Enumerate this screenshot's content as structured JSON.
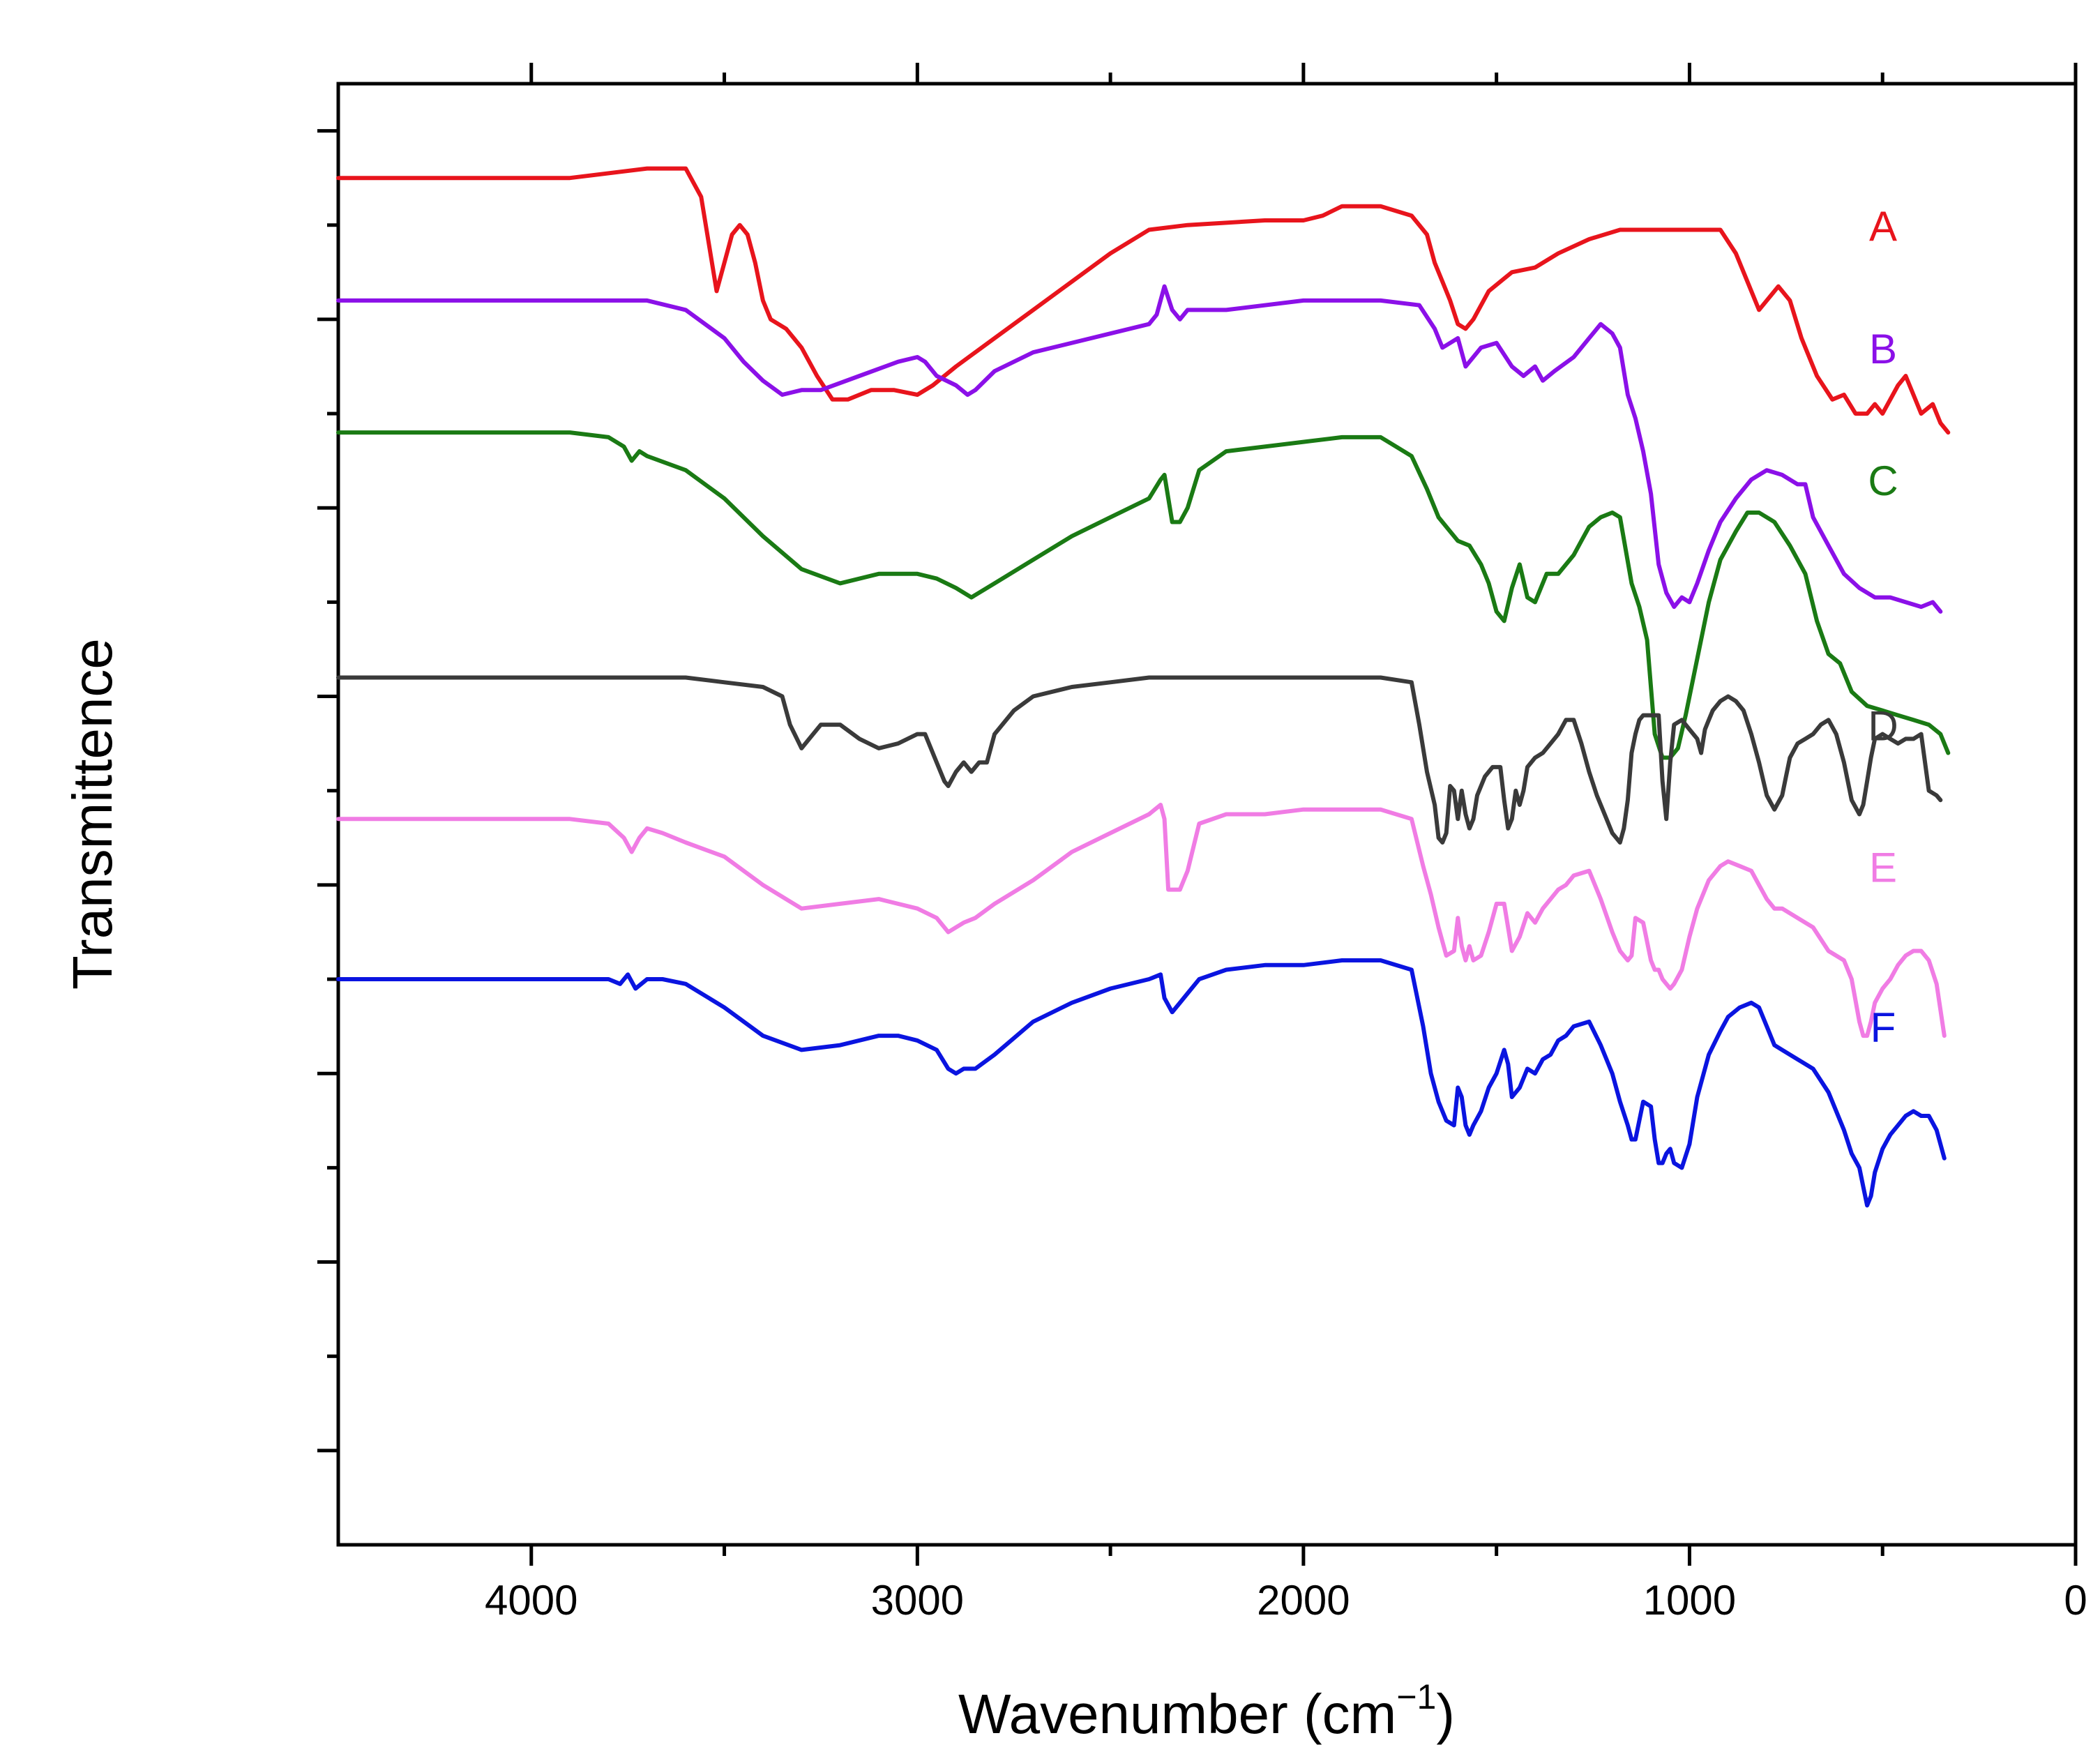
{
  "chart_data": {
    "type": "line",
    "title": "",
    "xlabel": "Wavenumber (cm",
    "xlabel_sup": "−1",
    "xlabel_close": ")",
    "ylabel": "Transmittence",
    "xlim": [
      4500,
      0
    ],
    "x_ticks": [
      4000,
      3000,
      2000,
      1000,
      0
    ],
    "x_tick_labels": [
      "4000",
      "3000",
      "2000",
      "1000",
      "0"
    ],
    "x_minor_ticks": [
      3500,
      2500,
      1500,
      500
    ],
    "ylim": [
      0,
      15.5
    ],
    "y_ticks": [
      1,
      3,
      5,
      7,
      9,
      11,
      13,
      15
    ],
    "y_tick_labels": [],
    "grid": false,
    "series": [
      {
        "name": "A",
        "color": "#e8141c",
        "x": [
          4500,
          3900,
          3700,
          3600,
          3560,
          3540,
          3520,
          3500,
          3480,
          3460,
          3440,
          3420,
          3400,
          3380,
          3340,
          3300,
          3260,
          3220,
          3180,
          3120,
          3060,
          3000,
          2960,
          2900,
          2800,
          2700,
          2600,
          2500,
          2400,
          2300,
          2100,
          2000,
          1950,
          1900,
          1800,
          1720,
          1680,
          1660,
          1640,
          1620,
          1600,
          1580,
          1560,
          1520,
          1460,
          1400,
          1340,
          1260,
          1180,
          1100,
          1000,
          920,
          880,
          850,
          820,
          800,
          770,
          740,
          710,
          670,
          630,
          600,
          570,
          540,
          520,
          500,
          480,
          460,
          440,
          420,
          400,
          370,
          350,
          330
        ],
        "y": [
          14.5,
          14.5,
          14.6,
          14.6,
          14.3,
          13.8,
          13.3,
          13.6,
          13.9,
          14.0,
          13.9,
          13.6,
          13.2,
          13.0,
          12.9,
          12.7,
          12.4,
          12.15,
          12.15,
          12.25,
          12.25,
          12.2,
          12.3,
          12.5,
          12.8,
          13.1,
          13.4,
          13.7,
          13.95,
          14.0,
          14.05,
          14.05,
          14.1,
          14.2,
          14.2,
          14.1,
          13.9,
          13.6,
          13.4,
          13.2,
          12.95,
          12.9,
          13.0,
          13.3,
          13.5,
          13.55,
          13.7,
          13.85,
          13.95,
          13.95,
          13.95,
          13.95,
          13.7,
          13.4,
          13.1,
          13.2,
          13.35,
          13.2,
          12.8,
          12.4,
          12.15,
          12.2,
          12.0,
          12.0,
          12.1,
          12.0,
          12.15,
          12.3,
          12.4,
          12.2,
          12.0,
          12.1,
          11.9,
          11.8
        ]
      },
      {
        "name": "B",
        "color": "#8b10e8",
        "x": [
          4500,
          3900,
          3700,
          3600,
          3500,
          3450,
          3400,
          3350,
          3300,
          3250,
          3150,
          3050,
          3000,
          2980,
          2950,
          2900,
          2870,
          2850,
          2800,
          2750,
          2700,
          2500,
          2400,
          2380,
          2360,
          2340,
          2320,
          2300,
          2200,
          2000,
          1900,
          1800,
          1700,
          1660,
          1640,
          1600,
          1580,
          1540,
          1500,
          1460,
          1430,
          1400,
          1380,
          1350,
          1300,
          1260,
          1230,
          1200,
          1180,
          1160,
          1140,
          1120,
          1100,
          1080,
          1060,
          1040,
          1020,
          1000,
          980,
          950,
          920,
          880,
          840,
          800,
          760,
          720,
          700,
          680,
          640,
          600,
          560,
          520,
          480,
          440,
          400,
          370,
          350
        ],
        "y": [
          13.2,
          13.2,
          13.2,
          13.1,
          12.8,
          12.55,
          12.35,
          12.2,
          12.25,
          12.25,
          12.4,
          12.55,
          12.6,
          12.55,
          12.4,
          12.3,
          12.2,
          12.25,
          12.45,
          12.55,
          12.65,
          12.85,
          12.95,
          13.05,
          13.35,
          13.1,
          13.0,
          13.1,
          13.1,
          13.2,
          13.2,
          13.2,
          13.15,
          12.9,
          12.7,
          12.8,
          12.5,
          12.7,
          12.75,
          12.5,
          12.4,
          12.5,
          12.35,
          12.45,
          12.6,
          12.8,
          12.95,
          12.85,
          12.7,
          12.2,
          11.95,
          11.6,
          11.15,
          10.4,
          10.1,
          9.95,
          10.05,
          10.0,
          10.2,
          10.55,
          10.85,
          11.1,
          11.3,
          11.4,
          11.35,
          11.25,
          11.25,
          10.9,
          10.6,
          10.3,
          10.15,
          10.05,
          10.05,
          10.0,
          9.95,
          10.0,
          9.9
        ]
      },
      {
        "name": "C",
        "color": "#1a7a14",
        "x": [
          4500,
          3900,
          3800,
          3760,
          3740,
          3720,
          3700,
          3600,
          3500,
          3400,
          3300,
          3200,
          3100,
          3000,
          2950,
          2900,
          2860,
          2800,
          2700,
          2600,
          2500,
          2400,
          2370,
          2360,
          2340,
          2320,
          2300,
          2270,
          2200,
          2100,
          2000,
          1900,
          1800,
          1720,
          1680,
          1650,
          1620,
          1600,
          1570,
          1540,
          1520,
          1500,
          1480,
          1460,
          1440,
          1420,
          1400,
          1370,
          1340,
          1300,
          1280,
          1260,
          1230,
          1200,
          1180,
          1150,
          1130,
          1110,
          1090,
          1070,
          1050,
          1030,
          1010,
          980,
          950,
          920,
          880,
          850,
          820,
          780,
          740,
          700,
          670,
          640,
          610,
          580,
          540,
          500,
          460,
          420,
          380,
          350,
          330
        ],
        "y": [
          11.8,
          11.8,
          11.75,
          11.65,
          11.5,
          11.6,
          11.55,
          11.4,
          11.1,
          10.7,
          10.35,
          10.2,
          10.3,
          10.3,
          10.25,
          10.15,
          10.05,
          10.2,
          10.45,
          10.7,
          10.9,
          11.1,
          11.3,
          11.35,
          10.85,
          10.85,
          11.0,
          11.4,
          11.6,
          11.65,
          11.7,
          11.75,
          11.75,
          11.55,
          11.2,
          10.9,
          10.75,
          10.65,
          10.6,
          10.4,
          10.2,
          9.9,
          9.8,
          10.15,
          10.4,
          10.05,
          10.0,
          10.3,
          10.3,
          10.5,
          10.65,
          10.8,
          10.9,
          10.95,
          10.9,
          10.2,
          9.95,
          9.6,
          8.6,
          8.35,
          8.35,
          8.45,
          8.8,
          9.4,
          10.0,
          10.45,
          10.75,
          10.95,
          10.95,
          10.85,
          10.6,
          10.3,
          9.8,
          9.45,
          9.35,
          9.05,
          8.9,
          8.85,
          8.8,
          8.75,
          8.7,
          8.6,
          8.4
        ]
      },
      {
        "name": "D",
        "color": "#3a3a3a",
        "x": [
          4500,
          3900,
          3700,
          3600,
          3500,
          3400,
          3350,
          3330,
          3300,
          3280,
          3250,
          3200,
          3150,
          3100,
          3050,
          3000,
          2980,
          2950,
          2930,
          2920,
          2900,
          2880,
          2860,
          2840,
          2820,
          2800,
          2750,
          2700,
          2600,
          2500,
          2400,
          2300,
          2200,
          2100,
          2000,
          1900,
          1800,
          1720,
          1700,
          1680,
          1660,
          1650,
          1640,
          1630,
          1620,
          1610,
          1600,
          1590,
          1580,
          1570,
          1560,
          1550,
          1530,
          1510,
          1490,
          1480,
          1470,
          1460,
          1450,
          1440,
          1430,
          1420,
          1400,
          1380,
          1360,
          1340,
          1320,
          1300,
          1280,
          1260,
          1240,
          1220,
          1200,
          1180,
          1170,
          1160,
          1150,
          1140,
          1130,
          1120,
          1100,
          1080,
          1070,
          1060,
          1050,
          1040,
          1020,
          1000,
          980,
          970,
          960,
          950,
          940,
          920,
          900,
          880,
          860,
          840,
          820,
          800,
          780,
          760,
          750,
          740,
          720,
          700,
          680,
          660,
          640,
          620,
          600,
          580,
          560,
          550,
          540,
          530,
          520,
          500,
          480,
          460,
          440,
          420,
          400,
          380,
          360,
          350
        ],
        "y": [
          9.2,
          9.2,
          9.2,
          9.2,
          9.15,
          9.1,
          9.0,
          8.7,
          8.45,
          8.55,
          8.7,
          8.7,
          8.55,
          8.45,
          8.5,
          8.6,
          8.6,
          8.3,
          8.1,
          8.05,
          8.2,
          8.3,
          8.2,
          8.3,
          8.3,
          8.6,
          8.85,
          9.0,
          9.1,
          9.15,
          9.2,
          9.2,
          9.2,
          9.2,
          9.2,
          9.2,
          9.2,
          9.15,
          8.7,
          8.2,
          7.85,
          7.5,
          7.45,
          7.55,
          8.05,
          8.0,
          7.7,
          8.0,
          7.75,
          7.6,
          7.7,
          7.95,
          8.15,
          8.25,
          8.25,
          7.9,
          7.6,
          7.7,
          8.0,
          7.85,
          8.0,
          8.25,
          8.35,
          8.4,
          8.5,
          8.6,
          8.75,
          8.75,
          8.5,
          8.2,
          7.95,
          7.75,
          7.55,
          7.45,
          7.6,
          7.9,
          8.4,
          8.6,
          8.75,
          8.8,
          8.8,
          8.8,
          8.1,
          7.7,
          8.3,
          8.7,
          8.75,
          8.65,
          8.55,
          8.4,
          8.65,
          8.75,
          8.85,
          8.95,
          9.0,
          8.95,
          8.85,
          8.6,
          8.3,
          7.95,
          7.8,
          7.95,
          8.15,
          8.35,
          8.5,
          8.55,
          8.6,
          8.7,
          8.75,
          8.6,
          8.3,
          7.9,
          7.75,
          7.85,
          8.1,
          8.35,
          8.55,
          8.6,
          8.55,
          8.5,
          8.55,
          8.55,
          8.6,
          8.0,
          7.95,
          7.9
        ]
      },
      {
        "name": "E",
        "color": "#f07ce4",
        "x": [
          4500,
          3900,
          3800,
          3760,
          3740,
          3720,
          3700,
          3660,
          3600,
          3500,
          3400,
          3300,
          3200,
          3100,
          3000,
          2950,
          2920,
          2900,
          2880,
          2850,
          2800,
          2700,
          2600,
          2500,
          2400,
          2370,
          2360,
          2350,
          2340,
          2320,
          2300,
          2270,
          2200,
          2100,
          2000,
          1900,
          1800,
          1720,
          1690,
          1670,
          1650,
          1630,
          1610,
          1600,
          1590,
          1580,
          1570,
          1560,
          1540,
          1520,
          1500,
          1480,
          1470,
          1460,
          1440,
          1420,
          1400,
          1380,
          1360,
          1340,
          1320,
          1300,
          1260,
          1230,
          1200,
          1180,
          1160,
          1150,
          1140,
          1120,
          1100,
          1090,
          1080,
          1070,
          1060,
          1050,
          1040,
          1020,
          1000,
          980,
          950,
          920,
          900,
          870,
          840,
          820,
          800,
          780,
          760,
          720,
          680,
          640,
          600,
          580,
          560,
          550,
          540,
          530,
          520,
          500,
          480,
          460,
          440,
          420,
          400,
          380,
          360,
          340
        ],
        "y": [
          7.7,
          7.7,
          7.65,
          7.5,
          7.35,
          7.5,
          7.6,
          7.55,
          7.45,
          7.3,
          7.0,
          6.75,
          6.8,
          6.85,
          6.75,
          6.65,
          6.5,
          6.55,
          6.6,
          6.65,
          6.8,
          7.05,
          7.35,
          7.55,
          7.75,
          7.85,
          7.7,
          6.95,
          6.95,
          6.95,
          7.15,
          7.65,
          7.75,
          7.75,
          7.8,
          7.8,
          7.8,
          7.7,
          7.2,
          6.9,
          6.55,
          6.25,
          6.3,
          6.65,
          6.35,
          6.2,
          6.35,
          6.2,
          6.25,
          6.5,
          6.8,
          6.8,
          6.55,
          6.3,
          6.45,
          6.7,
          6.6,
          6.75,
          6.85,
          6.95,
          7.0,
          7.1,
          7.15,
          6.85,
          6.5,
          6.3,
          6.2,
          6.25,
          6.65,
          6.6,
          6.2,
          6.1,
          6.1,
          6.0,
          5.95,
          5.9,
          5.95,
          6.1,
          6.45,
          6.75,
          7.05,
          7.2,
          7.25,
          7.2,
          7.15,
          7.0,
          6.85,
          6.75,
          6.75,
          6.65,
          6.55,
          6.3,
          6.2,
          6.0,
          5.55,
          5.4,
          5.4,
          5.55,
          5.75,
          5.9,
          6.0,
          6.15,
          6.25,
          6.3,
          6.3,
          6.2,
          5.95,
          5.4
        ]
      },
      {
        "name": "F",
        "color": "#0a14e0",
        "x": [
          4500,
          3900,
          3800,
          3770,
          3750,
          3730,
          3700,
          3660,
          3600,
          3500,
          3400,
          3300,
          3200,
          3100,
          3050,
          3000,
          2950,
          2920,
          2900,
          2880,
          2850,
          2800,
          2700,
          2600,
          2500,
          2400,
          2370,
          2360,
          2340,
          2320,
          2300,
          2270,
          2200,
          2100,
          2000,
          1900,
          1800,
          1720,
          1690,
          1670,
          1650,
          1630,
          1610,
          1600,
          1590,
          1580,
          1570,
          1560,
          1540,
          1520,
          1500,
          1480,
          1470,
          1460,
          1440,
          1420,
          1400,
          1380,
          1360,
          1340,
          1320,
          1300,
          1260,
          1230,
          1200,
          1180,
          1160,
          1150,
          1140,
          1120,
          1100,
          1090,
          1080,
          1070,
          1060,
          1050,
          1040,
          1020,
          1000,
          980,
          950,
          920,
          900,
          870,
          840,
          820,
          800,
          780,
          760,
          720,
          680,
          640,
          600,
          580,
          560,
          550,
          540,
          530,
          520,
          500,
          480,
          460,
          440,
          420,
          400,
          380,
          360,
          340
        ],
        "y": [
          6.0,
          6.0,
          6.0,
          5.95,
          6.05,
          5.9,
          6.0,
          6.0,
          5.95,
          5.7,
          5.4,
          5.25,
          5.3,
          5.4,
          5.4,
          5.35,
          5.25,
          5.05,
          5.0,
          5.05,
          5.05,
          5.2,
          5.55,
          5.75,
          5.9,
          6.0,
          6.05,
          5.8,
          5.65,
          5.75,
          5.85,
          6.0,
          6.1,
          6.15,
          6.15,
          6.2,
          6.2,
          6.1,
          5.5,
          5.0,
          4.7,
          4.5,
          4.45,
          4.85,
          4.75,
          4.45,
          4.35,
          4.45,
          4.6,
          4.85,
          5.0,
          5.25,
          5.1,
          4.75,
          4.85,
          5.05,
          5.0,
          5.15,
          5.2,
          5.35,
          5.4,
          5.5,
          5.55,
          5.3,
          5.0,
          4.7,
          4.45,
          4.3,
          4.3,
          4.7,
          4.65,
          4.3,
          4.05,
          4.05,
          4.15,
          4.2,
          4.05,
          4.0,
          4.25,
          4.75,
          5.2,
          5.45,
          5.6,
          5.7,
          5.75,
          5.7,
          5.5,
          5.3,
          5.25,
          5.15,
          5.05,
          4.8,
          4.4,
          4.15,
          4.0,
          3.8,
          3.6,
          3.7,
          3.95,
          4.2,
          4.35,
          4.45,
          4.55,
          4.6,
          4.55,
          4.55,
          4.4,
          4.1
        ]
      }
    ]
  }
}
